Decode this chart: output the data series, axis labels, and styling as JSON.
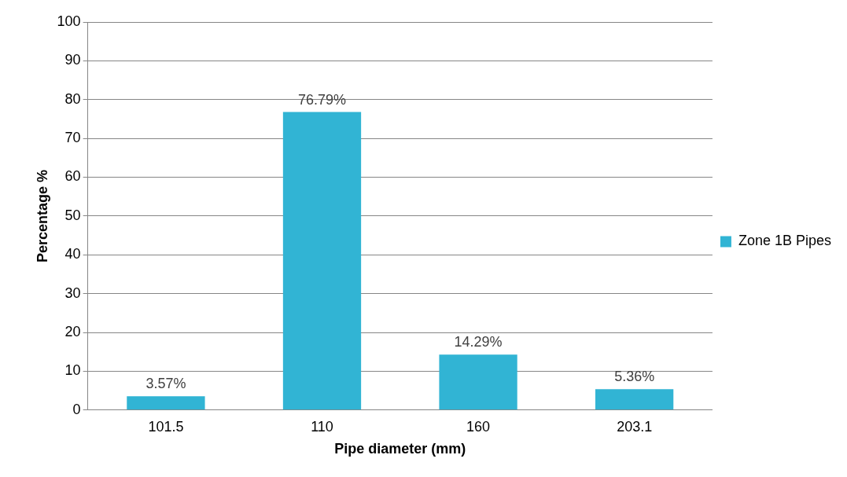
{
  "chart_data": {
    "type": "bar",
    "xlabel": "Pipe diameter (mm)",
    "ylabel": "Percentage %",
    "categories": [
      "101.5",
      "110",
      "160",
      "203.1"
    ],
    "series": [
      {
        "name": "Zone 1B Pipes",
        "color": "#31b4d4",
        "values": [
          3.57,
          76.79,
          14.29,
          5.36
        ],
        "value_labels": [
          "3.57%",
          "76.79%",
          "14.29%",
          "5.36%"
        ]
      }
    ],
    "ylim": [
      0,
      100
    ],
    "yticks": [
      0,
      10,
      20,
      30,
      40,
      50,
      60,
      70,
      80,
      90,
      100
    ],
    "grid": "y",
    "legend": "right"
  }
}
